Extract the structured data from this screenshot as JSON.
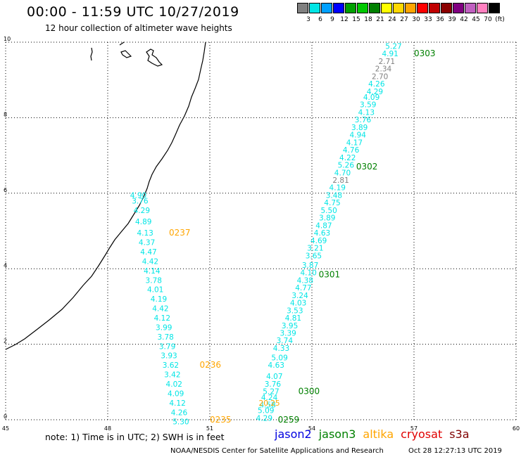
{
  "title": "00:00 - 11:59 UTC 10/27/2019",
  "subtitle": "12 hour collection of altimeter wave heights",
  "scale": {
    "colors": [
      "#808080",
      "#00e5e5",
      "#00a0ff",
      "#0000ff",
      "#00a000",
      "#00c800",
      "#008000",
      "#ffff00",
      "#ffd700",
      "#ffa500",
      "#ff0000",
      "#c00000",
      "#8b0000",
      "#800080",
      "#c060c0",
      "#ff80c0",
      "#000000"
    ],
    "labels": [
      "3",
      "6",
      "9",
      "12",
      "15",
      "18",
      "21",
      "24",
      "27",
      "30",
      "33",
      "36",
      "39",
      "42",
      "45",
      "70",
      "(ft)"
    ]
  },
  "axes": {
    "x_ticks": [
      "45",
      "48",
      "51",
      "54",
      "57",
      "60"
    ],
    "y_ticks": [
      "0",
      "2",
      "4",
      "6",
      "8",
      "10"
    ]
  },
  "chart_data": {
    "type": "scatter",
    "xlim": [
      45,
      60
    ],
    "ylim": [
      0,
      10
    ],
    "grid": true,
    "tracks": [
      {
        "satellite": "jason3",
        "pass_labels": [
          {
            "text": "0303",
            "x": 57.0,
            "y": 9.7
          },
          {
            "text": "0302",
            "x": 55.3,
            "y": 6.7
          },
          {
            "text": "0301",
            "x": 54.2,
            "y": 3.85
          },
          {
            "text": "0300",
            "x": 53.6,
            "y": 0.75
          },
          {
            "text": "0259",
            "x": 53.0,
            "y": 0.0
          }
        ],
        "points": [
          {
            "v": "5.27",
            "x": 56.4,
            "y": 9.9,
            "c": "#00e5e5"
          },
          {
            "v": "4.91",
            "x": 56.3,
            "y": 9.7,
            "c": "#00e5e5"
          },
          {
            "v": "2.71",
            "x": 56.2,
            "y": 9.5,
            "c": "#808080"
          },
          {
            "v": "2.34",
            "x": 56.1,
            "y": 9.3,
            "c": "#808080"
          },
          {
            "v": "2.70",
            "x": 56.0,
            "y": 9.1,
            "c": "#808080"
          },
          {
            "v": "4.26",
            "x": 55.9,
            "y": 8.9,
            "c": "#00e5e5"
          },
          {
            "v": "4.29",
            "x": 55.85,
            "y": 8.7,
            "c": "#00e5e5"
          },
          {
            "v": "4.09",
            "x": 55.75,
            "y": 8.55,
            "c": "#00e5e5"
          },
          {
            "v": "3.59",
            "x": 55.65,
            "y": 8.35,
            "c": "#00e5e5"
          },
          {
            "v": "4.13",
            "x": 55.6,
            "y": 8.15,
            "c": "#00e5e5"
          },
          {
            "v": "3.76",
            "x": 55.5,
            "y": 7.95,
            "c": "#00e5e5"
          },
          {
            "v": "3.89",
            "x": 55.4,
            "y": 7.75,
            "c": "#00e5e5"
          },
          {
            "v": "4.94",
            "x": 55.35,
            "y": 7.55,
            "c": "#00e5e5"
          },
          {
            "v": "4.17",
            "x": 55.25,
            "y": 7.35,
            "c": "#00e5e5"
          },
          {
            "v": "4.76",
            "x": 55.15,
            "y": 7.15,
            "c": "#00e5e5"
          },
          {
            "v": "4.22",
            "x": 55.05,
            "y": 6.95,
            "c": "#00e5e5"
          },
          {
            "v": "5.26",
            "x": 55.0,
            "y": 6.75,
            "c": "#00e5e5"
          },
          {
            "v": "4.70",
            "x": 54.9,
            "y": 6.55,
            "c": "#00e5e5"
          },
          {
            "v": "2.81",
            "x": 54.85,
            "y": 6.35,
            "c": "#808080"
          },
          {
            "v": "4.19",
            "x": 54.75,
            "y": 6.15,
            "c": "#00e5e5"
          },
          {
            "v": "3.48",
            "x": 54.65,
            "y": 5.95,
            "c": "#00e5e5"
          },
          {
            "v": "4.75",
            "x": 54.6,
            "y": 5.75,
            "c": "#00e5e5"
          },
          {
            "v": "5.50",
            "x": 54.5,
            "y": 5.55,
            "c": "#00e5e5"
          },
          {
            "v": "3.89",
            "x": 54.45,
            "y": 5.35,
            "c": "#00e5e5"
          },
          {
            "v": "4.87",
            "x": 54.35,
            "y": 5.15,
            "c": "#00e5e5"
          },
          {
            "v": "4.63",
            "x": 54.3,
            "y": 4.95,
            "c": "#00e5e5"
          },
          {
            "v": "4.69",
            "x": 54.2,
            "y": 4.75,
            "c": "#00e5e5"
          },
          {
            "v": "3.21",
            "x": 54.1,
            "y": 4.55,
            "c": "#00e5e5"
          },
          {
            "v": "3.65",
            "x": 54.05,
            "y": 4.35,
            "c": "#00e5e5"
          },
          {
            "v": "3.87",
            "x": 53.95,
            "y": 4.1,
            "c": "#00e5e5"
          },
          {
            "v": "4.10",
            "x": 53.9,
            "y": 3.9,
            "c": "#00e5e5"
          },
          {
            "v": "4.38",
            "x": 53.8,
            "y": 3.7,
            "c": "#00e5e5"
          },
          {
            "v": "4.77",
            "x": 53.75,
            "y": 3.5,
            "c": "#00e5e5"
          },
          {
            "v": "3.24",
            "x": 53.65,
            "y": 3.3,
            "c": "#00e5e5"
          },
          {
            "v": "4.03",
            "x": 53.6,
            "y": 3.1,
            "c": "#00e5e5"
          },
          {
            "v": "3.53",
            "x": 53.5,
            "y": 2.9,
            "c": "#00e5e5"
          },
          {
            "v": "4.81",
            "x": 53.45,
            "y": 2.7,
            "c": "#00e5e5"
          },
          {
            "v": "3.95",
            "x": 53.35,
            "y": 2.5,
            "c": "#00e5e5"
          },
          {
            "v": "3.39",
            "x": 53.3,
            "y": 2.3,
            "c": "#00e5e5"
          },
          {
            "v": "3.74",
            "x": 53.2,
            "y": 2.1,
            "c": "#00e5e5"
          },
          {
            "v": "4.33",
            "x": 53.1,
            "y": 1.9,
            "c": "#00e5e5"
          },
          {
            "v": "5.09",
            "x": 53.05,
            "y": 1.65,
            "c": "#00e5e5"
          },
          {
            "v": "4.63",
            "x": 52.95,
            "y": 1.45,
            "c": "#00e5e5"
          },
          {
            "v": "4.07",
            "x": 52.9,
            "y": 1.15,
            "c": "#00e5e5"
          },
          {
            "v": "3.76",
            "x": 52.85,
            "y": 0.95,
            "c": "#00e5e5"
          },
          {
            "v": "5.27",
            "x": 52.8,
            "y": 0.75,
            "c": "#00e5e5"
          },
          {
            "v": "4.24",
            "x": 52.75,
            "y": 0.6,
            "c": "#00e5e5"
          },
          {
            "v": "4.58",
            "x": 52.7,
            "y": 0.4,
            "c": "#00e5e5"
          },
          {
            "v": "5.09",
            "x": 52.65,
            "y": 0.25,
            "c": "#00e5e5"
          },
          {
            "v": "4.29",
            "x": 52.6,
            "y": 0.05,
            "c": "#00e5e5"
          }
        ]
      },
      {
        "satellite": "altika",
        "pass_labels": [
          {
            "text": "0237",
            "x": 49.8,
            "y": 4.95
          },
          {
            "text": "0236",
            "x": 50.7,
            "y": 1.45
          },
          {
            "text": "0235",
            "x": 51.0,
            "y": 0.0
          }
        ],
        "points": [
          {
            "v": "4.90",
            "x": 48.9,
            "y": 5.95,
            "c": "#00e5e5"
          },
          {
            "v": "3.76",
            "x": 48.95,
            "y": 5.8,
            "c": "#00e5e5"
          },
          {
            "v": "4.29",
            "x": 49.0,
            "y": 5.55,
            "c": "#00e5e5"
          },
          {
            "v": "4.89",
            "x": 49.05,
            "y": 5.25,
            "c": "#00e5e5"
          },
          {
            "v": "4.13",
            "x": 49.1,
            "y": 4.95,
            "c": "#00e5e5"
          },
          {
            "v": "4.37",
            "x": 49.15,
            "y": 4.7,
            "c": "#00e5e5"
          },
          {
            "v": "4.47",
            "x": 49.2,
            "y": 4.45,
            "c": "#00e5e5"
          },
          {
            "v": "4.42",
            "x": 49.25,
            "y": 4.2,
            "c": "#00e5e5"
          },
          {
            "v": "4.14",
            "x": 49.3,
            "y": 3.95,
            "c": "#00e5e5"
          },
          {
            "v": "3.78",
            "x": 49.35,
            "y": 3.7,
            "c": "#00e5e5"
          },
          {
            "v": "4.01",
            "x": 49.4,
            "y": 3.45,
            "c": "#00e5e5"
          },
          {
            "v": "4.19",
            "x": 49.5,
            "y": 3.2,
            "c": "#00e5e5"
          },
          {
            "v": "4.42",
            "x": 49.55,
            "y": 2.95,
            "c": "#00e5e5"
          },
          {
            "v": "4.12",
            "x": 49.6,
            "y": 2.7,
            "c": "#00e5e5"
          },
          {
            "v": "3.99",
            "x": 49.65,
            "y": 2.45,
            "c": "#00e5e5"
          },
          {
            "v": "3.78",
            "x": 49.7,
            "y": 2.2,
            "c": "#00e5e5"
          },
          {
            "v": "3.79",
            "x": 49.75,
            "y": 1.95,
            "c": "#00e5e5"
          },
          {
            "v": "3.93",
            "x": 49.8,
            "y": 1.7,
            "c": "#00e5e5"
          },
          {
            "v": "3.62",
            "x": 49.85,
            "y": 1.45,
            "c": "#00e5e5"
          },
          {
            "v": "3.42",
            "x": 49.9,
            "y": 1.2,
            "c": "#00e5e5"
          },
          {
            "v": "4.02",
            "x": 49.95,
            "y": 0.95,
            "c": "#00e5e5"
          },
          {
            "v": "4.09",
            "x": 50.0,
            "y": 0.7,
            "c": "#00e5e5"
          },
          {
            "v": "4.12",
            "x": 50.05,
            "y": 0.45,
            "c": "#00e5e5"
          },
          {
            "v": "4.26",
            "x": 50.1,
            "y": 0.2,
            "c": "#00e5e5"
          },
          {
            "v": "5.30",
            "x": 50.15,
            "y": -0.05,
            "c": "#00e5e5"
          },
          {
            "v": "20.25",
            "x": 52.75,
            "y": 0.45,
            "c": "#ffa500"
          }
        ]
      }
    ]
  },
  "note": "note: 1) Time is in UTC; 2) SWH is in feet",
  "legend": [
    {
      "label": "jason2",
      "color": "#0000e0"
    },
    {
      "label": "jason3",
      "color": "#008000"
    },
    {
      "label": "altika",
      "color": "#ffa500"
    },
    {
      "label": "cryosat",
      "color": "#e00000"
    },
    {
      "label": "s3a",
      "color": "#800000"
    }
  ],
  "credit": "NOAA/NESDIS Center for Satellite Applications and Research",
  "stamp": "Oct 28 12:27:13 UTC 2019"
}
